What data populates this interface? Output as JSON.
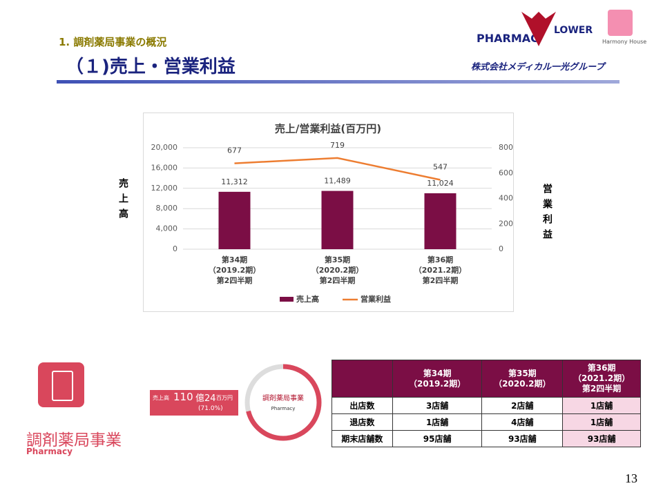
{
  "header": {
    "section": "1. 調剤薬局事業の概況",
    "title": "（１)売上・営業利益"
  },
  "logos": {
    "pharmacy": "PHARMAC",
    "flower": "LOWER",
    "harmony": "Harmony House",
    "company": "株式会社メディカル一光グループ"
  },
  "chart_data": {
    "type": "bar",
    "title": "売上/営業利益(百万円)",
    "categories": [
      [
        "第34期",
        "（2019.2期）",
        "第2四半期"
      ],
      [
        "第35期",
        "（2020.2期）",
        "第2四半期"
      ],
      [
        "第36期",
        "（2021.2期）",
        "第2四半期"
      ]
    ],
    "series": [
      {
        "name": "売上高",
        "color": "#7b0e45",
        "values": [
          11312,
          11489,
          11024
        ],
        "value_labels": [
          "11,312",
          "11,489",
          "11,024"
        ]
      },
      {
        "name": "営業利益",
        "color": "#ed7d31",
        "axis": "y2",
        "type": "line",
        "values": [
          677,
          719,
          547
        ]
      }
    ],
    "y_label": "売上高",
    "y2_label": "営業利益",
    "ylim": [
      0,
      20000
    ],
    "yticks": [
      0,
      {
        "value": 4000,
        "label": "4,000"
      },
      {
        "value": 8000,
        "label": "8,000"
      },
      {
        "value": 12000,
        "label": "12,000"
      },
      {
        "value": 16000,
        "label": "16,000"
      },
      {
        "value": 20000,
        "label": "20,000"
      }
    ],
    "y2lim": [
      0,
      800
    ],
    "y2ticks": [
      0,
      200,
      400,
      600,
      800
    ],
    "grid": true,
    "legend": "bottom"
  },
  "segment": {
    "name": "調剤薬局事業",
    "sub": "Pharmacy",
    "sales_label": "売上高",
    "sales_value": "110",
    "unit1": "億24",
    "unit2": "百万円",
    "share": "(71.0%)"
  },
  "table": {
    "header": [
      [
        "第34期",
        "（2019.2期）"
      ],
      [
        "第35期",
        "（2020.2期）"
      ],
      [
        "第36期",
        "（2021.2期）",
        "第2四半期"
      ]
    ],
    "rows": [
      [
        "出店数",
        "3店舗",
        "2店舗",
        "1店舗"
      ],
      [
        "退店数",
        "1店舗",
        "4店舗",
        "1店舗"
      ],
      [
        "期末店舗数",
        "95店舗",
        "93店舗",
        "93店舗"
      ]
    ]
  },
  "page_number": "13"
}
